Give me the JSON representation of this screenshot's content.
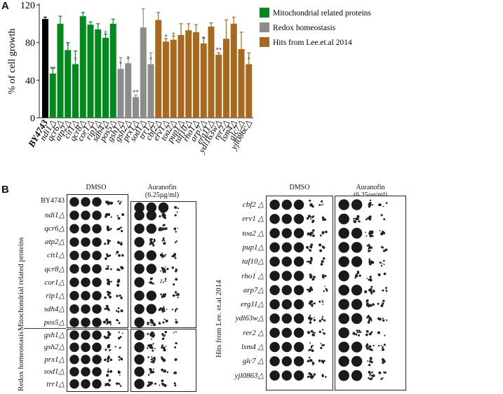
{
  "panel_a_label": "A",
  "panel_b_label": "B",
  "chart_data": {
    "type": "bar",
    "ylabel": "% of cell growth",
    "ylim": [
      0,
      120
    ],
    "yticks": [
      "0",
      "40",
      "80",
      "120"
    ],
    "legend": [
      {
        "name": "Mitochondrial related proteins",
        "color": "#008A1E"
      },
      {
        "name": "Redox homeostasis",
        "color": "#8C8C8C"
      },
      {
        "name": "Hits from Lee.et.al 2014",
        "color": "#A8691F"
      }
    ],
    "categories": [
      "BY4743",
      "ndi1△",
      "qcr6△",
      "atp2△",
      "cit1△",
      "qcr8△",
      "cor1△",
      "rip1△",
      "sdh4△",
      "pos5△",
      "gsh1△",
      "gsh2△",
      "prx1△",
      "sod1△",
      "trr1△",
      "cbf2△",
      "erv1△",
      "toa2△",
      "pup1△",
      "taf10△",
      "rho1△",
      "arp7△",
      "erg11△",
      "ydl163w△",
      "rer2△",
      "lsm4△",
      "glc7△",
      "yjl086c△"
    ],
    "values": [
      105,
      47,
      100,
      72,
      57,
      108,
      99,
      94,
      85,
      100,
      52,
      58,
      22,
      96,
      57,
      104,
      81,
      83,
      88,
      93,
      91,
      79,
      97,
      67,
      84,
      100,
      73,
      57
    ],
    "errors": [
      2,
      6,
      8,
      8,
      14,
      4,
      3,
      6,
      4,
      5,
      12,
      5,
      2,
      20,
      12,
      8,
      3,
      4,
      12,
      7,
      8,
      6,
      4,
      2,
      20,
      7,
      18,
      12
    ],
    "group": [
      0,
      1,
      1,
      1,
      1,
      1,
      1,
      1,
      1,
      1,
      2,
      2,
      2,
      2,
      2,
      3,
      3,
      3,
      3,
      3,
      3,
      3,
      3,
      3,
      3,
      3,
      3,
      3
    ],
    "group_colors": [
      "#000000",
      "#008A1E",
      "#8C8C8C",
      "#A8691F"
    ],
    "significance": [
      "",
      "**",
      "",
      "*",
      "*",
      "",
      "",
      "",
      "*",
      "",
      "*",
      "*",
      "**",
      "",
      "*",
      "",
      "*",
      "*",
      "",
      "",
      "",
      "*",
      "",
      "**",
      "",
      "",
      "",
      "*"
    ]
  },
  "left_block": {
    "header_dmso": "DMSO",
    "header_auranofin": "Auranofin",
    "header_conc": "(6.25µg/ml)",
    "group1_label": "Mitochondrial related proteins",
    "group2_label": "Redox homeostasis",
    "strains_top": [
      "BY4743",
      "ndi1△",
      "qcr6△",
      "atp2△",
      "cit1△",
      "qcr8△",
      "cor1△",
      "rip1△",
      "sdh4△",
      "pos5△"
    ],
    "strains_bottom": [
      "gsh1△",
      "gsh2△",
      "prx1△",
      "sod1△",
      "trr1△"
    ]
  },
  "right_block": {
    "header_dmso": "DMSO",
    "header_auranofin": "Auranofin",
    "header_conc": "(6.25µg/ml)",
    "group_label": "Hits from Lee. et.al 2014",
    "strains": [
      "cbf2 △",
      "erv1 △",
      "toa2 △",
      "pup1△",
      "taf10△",
      "rho1 △",
      "arp7△",
      "erg11△",
      "ydl63w△",
      "rer2 △",
      "lsm4 △",
      "glc7 △",
      "yjl0863△"
    ]
  }
}
